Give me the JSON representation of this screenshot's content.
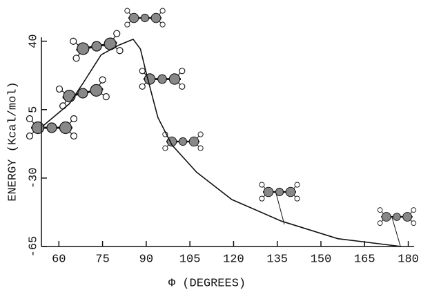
{
  "chart_data": {
    "type": "line",
    "x_label": "Φ (DEGREES)",
    "y_label": "ENERGY  (Kcal/mol)",
    "x": [
      54.4,
      63.6,
      68.5,
      74.5,
      80.6,
      85.5,
      88,
      90.3,
      94,
      98.8,
      107.3,
      119.4,
      136.4,
      155.8,
      177.6
    ],
    "series": [
      {
        "color": "#111111",
        "values": [
          -3.5,
          8,
          19,
          33,
          38,
          41,
          36,
          22,
          1,
          -13,
          -27,
          -41,
          -52,
          -61,
          -65
        ]
      }
    ],
    "xlim": [
      54,
      182
    ],
    "xticks": [
      60,
      75,
      90,
      105,
      120,
      135,
      150,
      165,
      180
    ],
    "ylim": [
      -65,
      42
    ],
    "yticks": [
      -65,
      -30,
      5,
      40
    ],
    "grid": false
  }
}
